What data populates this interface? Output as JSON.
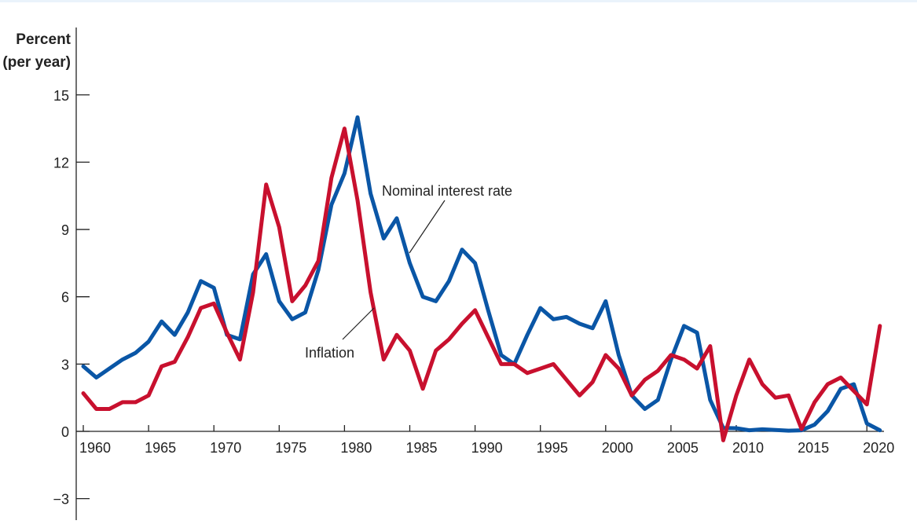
{
  "chart_data": {
    "type": "line",
    "ylabel_line1": "Percent",
    "ylabel_line2": "(per year)",
    "ylim": [
      -3,
      15
    ],
    "yticks": [
      -3,
      0,
      3,
      6,
      9,
      12,
      15
    ],
    "ytick_labels": [
      "−3",
      "0",
      "3",
      "6",
      "9",
      "12",
      "15"
    ],
    "xticks": [
      1960,
      1965,
      1970,
      1975,
      1980,
      1985,
      1990,
      1995,
      2000,
      2005,
      2010,
      2015,
      2020
    ],
    "xtick_labels": [
      "1960",
      "1965",
      "1970",
      "1975",
      "1980",
      "1985",
      "1990",
      "1995",
      "2000",
      "2005",
      "2010",
      "2015",
      "2020"
    ],
    "grid": false,
    "x": [
      1960,
      1961,
      1962,
      1963,
      1964,
      1965,
      1966,
      1967,
      1968,
      1969,
      1970,
      1971,
      1972,
      1973,
      1974,
      1975,
      1976,
      1977,
      1978,
      1979,
      1980,
      1981,
      1982,
      1983,
      1984,
      1985,
      1986,
      1987,
      1988,
      1989,
      1990,
      1991,
      1992,
      1993,
      1994,
      1995,
      1996,
      1997,
      1998,
      1999,
      2000,
      2001,
      2002,
      2003,
      2004,
      2005,
      2006,
      2007,
      2008,
      2009,
      2010,
      2011,
      2012,
      2013,
      2014,
      2015,
      2016,
      2017,
      2018,
      2019,
      2020,
      2021
    ],
    "series": [
      {
        "name": "Nominal interest rate",
        "color": "#0a56a6",
        "values": [
          2.9,
          2.4,
          2.8,
          3.2,
          3.5,
          4.0,
          4.9,
          4.3,
          5.3,
          6.7,
          6.4,
          4.3,
          4.1,
          7.0,
          7.9,
          5.8,
          5.0,
          5.3,
          7.2,
          10.1,
          11.5,
          14.0,
          10.6,
          8.6,
          9.5,
          7.5,
          6.0,
          5.8,
          6.7,
          8.1,
          7.5,
          5.4,
          3.4,
          3.0,
          4.3,
          5.5,
          5.0,
          5.1,
          4.8,
          4.6,
          5.8,
          3.4,
          1.6,
          1.0,
          1.4,
          3.2,
          4.7,
          4.4,
          1.4,
          0.15,
          0.14,
          0.05,
          0.09,
          0.06,
          0.03,
          0.05,
          0.3,
          0.9,
          1.9,
          2.1,
          0.35,
          0.05
        ]
      },
      {
        "name": "Inflation",
        "color": "#c8102e",
        "values": [
          1.7,
          1.0,
          1.0,
          1.3,
          1.3,
          1.6,
          2.9,
          3.1,
          4.2,
          5.5,
          5.7,
          4.4,
          3.2,
          6.2,
          11.0,
          9.1,
          5.8,
          6.5,
          7.6,
          11.3,
          13.5,
          10.3,
          6.2,
          3.2,
          4.3,
          3.6,
          1.9,
          3.6,
          4.1,
          4.8,
          5.4,
          4.2,
          3.0,
          3.0,
          2.6,
          2.8,
          3.0,
          2.3,
          1.6,
          2.2,
          3.4,
          2.8,
          1.6,
          2.3,
          2.7,
          3.4,
          3.2,
          2.8,
          3.8,
          -0.4,
          1.6,
          3.2,
          2.1,
          1.5,
          1.6,
          0.1,
          1.3,
          2.1,
          2.4,
          1.8,
          1.2,
          4.7
        ]
      }
    ]
  }
}
